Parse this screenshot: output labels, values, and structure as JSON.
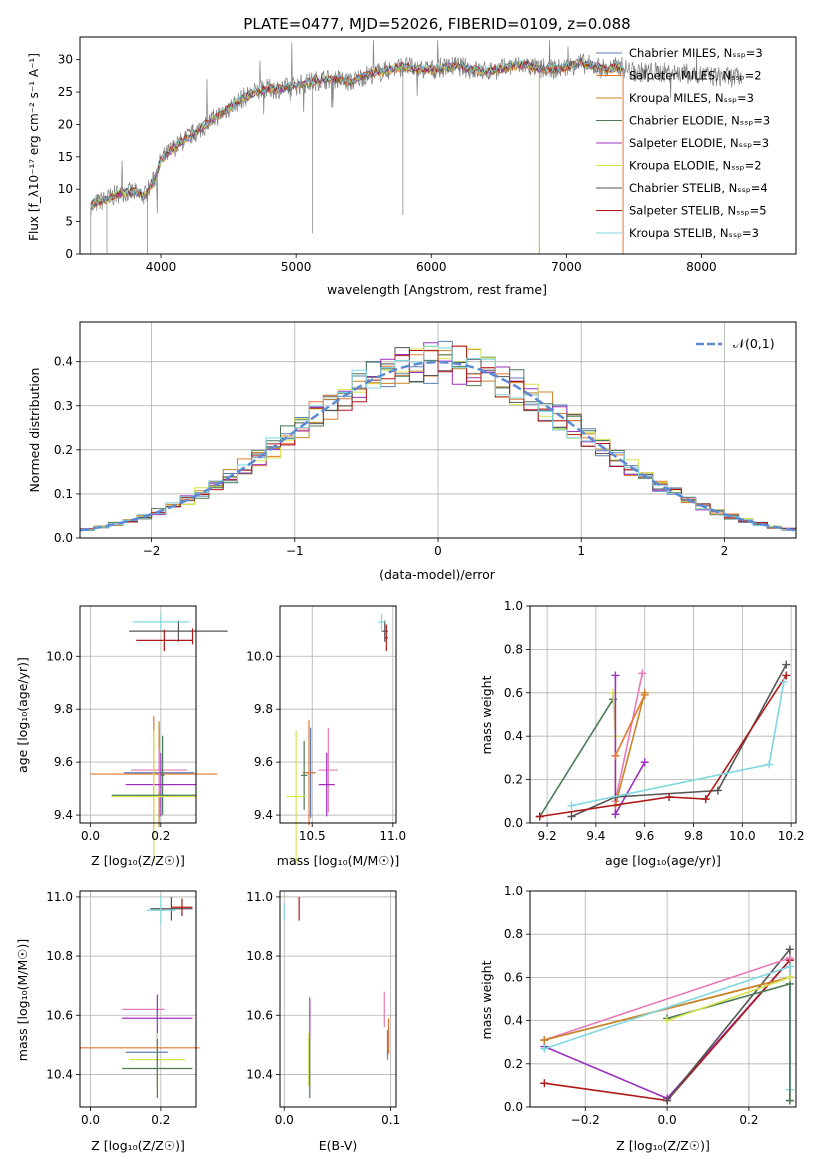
{
  "figure_title": "PLATE=0477, MJD=52026, FIBERID=0109, z=0.088",
  "colors": {
    "chabrier_miles": "#5b7fb0",
    "salpeter_miles": "#e8772e",
    "kroupa_miles": "#c8852a",
    "chabrier_elodie": "#4a7a56",
    "salpeter_elodie": "#9b30c0",
    "kroupa_elodie": "#d5e34e",
    "chabrier_stelib": "#555555",
    "salpeter_stelib": "#b01818",
    "kroupa_stelib": "#7ed6e0",
    "miles_pink": "#e77bb8",
    "model_curve": "#5b8bd6"
  },
  "chart_data": [
    {
      "id": "spectrum",
      "type": "line",
      "xlabel": "wavelength [Angstrom, rest frame]",
      "ylabel": "Flux [f_λ10⁻¹⁷ erg cm⁻² s⁻¹ A⁻¹]",
      "xlim": [
        3400,
        8700
      ],
      "ylim": [
        0,
        33.5
      ],
      "xticks": [
        4000,
        5000,
        6000,
        7000,
        8000
      ],
      "yticks": [
        0,
        5,
        10,
        15,
        20,
        25,
        30
      ],
      "grid": false,
      "legend": "right",
      "continuum": {
        "x": [
          3480,
          3600,
          3700,
          3800,
          3880,
          3950,
          4000,
          4100,
          4200,
          4300,
          4400,
          4500,
          4600,
          4700,
          4800,
          4900,
          5000,
          5100,
          5200,
          5300,
          5400,
          5500,
          5600,
          5700,
          5800,
          5900,
          6000,
          6100,
          6200,
          6300,
          6400,
          6500,
          6600,
          6700,
          6800,
          6900,
          7000,
          7100,
          7200,
          7300,
          7400,
          7500,
          7600,
          7700,
          7800,
          7900,
          8000,
          8100,
          8200,
          8300
        ],
        "y": [
          7.5,
          8.5,
          9.5,
          9.5,
          9.0,
          11.5,
          14.5,
          16.5,
          18.0,
          19.5,
          21.0,
          22.5,
          24.0,
          25.0,
          25.5,
          25.5,
          26.0,
          26.5,
          27.0,
          27.0,
          26.5,
          27.5,
          28.0,
          28.5,
          29.0,
          28.5,
          28.5,
          28.8,
          29.0,
          28.5,
          28.2,
          28.5,
          29.0,
          29.2,
          28.5,
          28.5,
          28.8,
          29.5,
          29.0,
          28.5,
          29.0,
          28.0,
          28.2,
          28.0,
          28.0,
          27.8,
          27.6,
          27.4,
          27.3,
          27.2
        ]
      },
      "series": [
        {
          "name": "Chabrier MILES, N_SSP=3",
          "color_key": "chabrier_miles"
        },
        {
          "name": "Salpeter MILES, N_SSP=2",
          "color_key": "salpeter_miles"
        },
        {
          "name": "Kroupa MILES, N_SSP=3",
          "color_key": "kroupa_miles"
        },
        {
          "name": "Chabrier ELODIE, N_SSP=3",
          "color_key": "chabrier_elodie"
        },
        {
          "name": "Salpeter ELODIE, N_SSP=3",
          "color_key": "salpeter_elodie"
        },
        {
          "name": "Kroupa ELODIE, N_SSP=2",
          "color_key": "kroupa_elodie"
        },
        {
          "name": "Chabrier STELIB, N_SSP=4",
          "color_key": "chabrier_stelib"
        },
        {
          "name": "Salpeter STELIB, N_SSP=5",
          "color_key": "salpeter_stelib"
        },
        {
          "name": "Kroupa STELIB, N_SSP=3",
          "color_key": "kroupa_stelib"
        }
      ]
    },
    {
      "id": "residuals",
      "type": "histogram",
      "xlabel": "(data-model)/error",
      "ylabel": "Normed distribution",
      "xlim": [
        -2.5,
        2.5
      ],
      "ylim": [
        0,
        0.49
      ],
      "xticks": [
        -2,
        -1,
        0,
        1,
        2
      ],
      "yticks": [
        0.0,
        0.1,
        0.2,
        0.3,
        0.4
      ],
      "grid": true,
      "legend": "top-right",
      "curve_label": "𝒩(0,1)",
      "bin_width": 0.1,
      "bin_start": -2.5,
      "bin_count": 50
    },
    {
      "id": "age_vs_Z",
      "type": "errorbar",
      "xlabel": "Z [log₁₀(Z/Z☉)]",
      "ylabel": "age  [log₁₀(age/yr)]",
      "xlim": [
        -0.03,
        0.3
      ],
      "ylim": [
        9.37,
        10.19
      ],
      "xticks": [
        0.0,
        0.2
      ],
      "yticks": [
        9.4,
        9.6,
        9.8,
        10.0
      ],
      "grid": true,
      "points": [
        {
          "key": "chabrier_miles",
          "x": 0.195,
          "xerr": 0.1,
          "y": 9.56,
          "yerr": 0.17
        },
        {
          "key": "salpeter_miles",
          "x": 0.18,
          "xerr": 0.18,
          "y": 9.555,
          "yerr": 0.22
        },
        {
          "key": "kroupa_miles",
          "x": 0.195,
          "xerr": 0.005,
          "y": 9.555,
          "yerr": 0.2
        },
        {
          "key": "miles_pink",
          "x": 0.195,
          "xerr": 0.08,
          "y": 9.57,
          "yerr": 0.08
        },
        {
          "key": "chabrier_elodie",
          "x": 0.205,
          "xerr": 0.005,
          "y": 9.55,
          "yerr": 0.15
        },
        {
          "key": "salpeter_elodie",
          "x": 0.2,
          "xerr": 0.1,
          "y": 9.515,
          "yerr": 0.12
        },
        {
          "key": "kroupa_elodie",
          "x": 0.18,
          "xerr": 0.12,
          "y": 9.47,
          "yerr": 0.25
        },
        {
          "key": "chabrier_elodie",
          "x": 0.18,
          "xerr": 0.12,
          "y": 9.475,
          "yerr": 0.0
        },
        {
          "key": "chabrier_stelib",
          "x": 0.25,
          "xerr": 0.14,
          "y": 10.095,
          "yerr": 0.04
        },
        {
          "key": "salpeter_stelib",
          "x": 0.29,
          "xerr": 0.0,
          "y": 10.075,
          "yerr": 0.03
        },
        {
          "key": "salpeter_stelib",
          "x": 0.21,
          "xerr": 0.08,
          "y": 10.06,
          "yerr": 0.04
        },
        {
          "key": "kroupa_stelib",
          "x": 0.2,
          "xerr": 0.08,
          "y": 10.13,
          "yerr": 0.03
        }
      ]
    },
    {
      "id": "age_vs_mass",
      "type": "errorbar",
      "xlabel": "mass [log₁₀(M/M☉)]",
      "ylabel": "",
      "xlim": [
        10.3,
        11.02
      ],
      "ylim": [
        9.37,
        10.19
      ],
      "xticks": [
        10.5,
        11.0
      ],
      "yticks": [
        9.4,
        9.6,
        9.8,
        10.0
      ],
      "grid": true,
      "points": [
        {
          "key": "chabrier_miles",
          "x": 10.49,
          "xerr": 0.03,
          "y": 9.56,
          "yerr": 0.17
        },
        {
          "key": "salpeter_miles",
          "x": 10.48,
          "xerr": 0.04,
          "y": 9.56,
          "yerr": 0.2
        },
        {
          "key": "miles_pink",
          "x": 10.6,
          "xerr": 0.06,
          "y": 9.57,
          "yerr": 0.16
        },
        {
          "key": "chabrier_elodie",
          "x": 10.45,
          "xerr": 0.02,
          "y": 9.55,
          "yerr": 0.13
        },
        {
          "key": "salpeter_elodie",
          "x": 10.59,
          "xerr": 0.05,
          "y": 9.515,
          "yerr": 0.12
        },
        {
          "key": "kroupa_elodie",
          "x": 10.4,
          "xerr": 0.06,
          "y": 9.47,
          "yerr": 0.25
        },
        {
          "key": "chabrier_stelib",
          "x": 10.95,
          "xerr": 0.02,
          "y": 10.095,
          "yerr": 0.04
        },
        {
          "key": "salpeter_stelib",
          "x": 10.96,
          "xerr": 0.01,
          "y": 10.07,
          "yerr": 0.05
        },
        {
          "key": "kroupa_stelib",
          "x": 10.93,
          "xerr": 0.02,
          "y": 10.13,
          "yerr": 0.03
        }
      ]
    },
    {
      "id": "weight_vs_age",
      "type": "line",
      "xlabel": "age  [log₁₀(age/yr)]",
      "ylabel": "mass weight",
      "xlim": [
        9.13,
        10.22
      ],
      "ylim": [
        0,
        1
      ],
      "xticks": [
        9.2,
        9.4,
        9.6,
        9.8,
        10.0,
        10.2
      ],
      "yticks": [
        0.0,
        0.2,
        0.4,
        0.6,
        0.8,
        1.0
      ],
      "grid": true,
      "series": [
        {
          "key": "chabrier_elodie",
          "x": [
            9.17,
            9.47
          ],
          "y": [
            0.03,
            0.57
          ]
        },
        {
          "key": "kroupa_elodie",
          "x": [
            9.47,
            9.48,
            9.48
          ],
          "y": [
            0.6,
            0.4,
            0.1
          ]
        },
        {
          "key": "salpeter_elodie",
          "x": [
            9.48,
            9.48,
            9.48,
            9.6
          ],
          "y": [
            0.68,
            0.31,
            0.04,
            0.28
          ]
        },
        {
          "key": "miles_pink",
          "x": [
            9.48,
            9.59
          ],
          "y": [
            0.1,
            0.69
          ]
        },
        {
          "key": "salpeter_miles",
          "x": [
            9.48,
            9.6
          ],
          "y": [
            0.31,
            0.59
          ]
        },
        {
          "key": "kroupa_miles",
          "x": [
            9.48,
            9.6
          ],
          "y": [
            0.08,
            0.6
          ]
        },
        {
          "key": "chabrier_stelib",
          "x": [
            9.3,
            9.48,
            9.9,
            10.18
          ],
          "y": [
            0.03,
            0.12,
            0.15,
            0.73
          ]
        },
        {
          "key": "salpeter_stelib",
          "x": [
            9.17,
            9.7,
            9.85,
            10.18
          ],
          "y": [
            0.03,
            0.12,
            0.11,
            0.68
          ]
        },
        {
          "key": "kroupa_stelib",
          "x": [
            9.3,
            10.11,
            10.17
          ],
          "y": [
            0.08,
            0.27,
            0.65
          ]
        }
      ]
    },
    {
      "id": "mass_vs_Z",
      "type": "errorbar",
      "xlabel": "Z [log₁₀(Z/Z☉)]",
      "ylabel": "mass [log₁₀(M/M☉)]",
      "xlim": [
        -0.03,
        0.3
      ],
      "ylim": [
        10.29,
        11.02
      ],
      "xticks": [
        0.0,
        0.2
      ],
      "yticks": [
        10.4,
        10.6,
        10.8,
        11.0
      ],
      "grid": true,
      "points": [
        {
          "key": "salpeter_miles",
          "x": 0.14,
          "xerr": 0.17,
          "y": 10.49,
          "yerr": 0.0
        },
        {
          "key": "chabrier_miles",
          "x": 0.16,
          "xerr": 0.06,
          "y": 10.475,
          "yerr": 0.0
        },
        {
          "key": "miles_pink",
          "x": 0.15,
          "xerr": 0.06,
          "y": 10.62,
          "yerr": 0.0
        },
        {
          "key": "salpeter_elodie",
          "x": 0.19,
          "xerr": 0.1,
          "y": 10.59,
          "yerr": 0.08
        },
        {
          "key": "kroupa_elodie",
          "x": 0.19,
          "xerr": 0.08,
          "y": 10.45,
          "yerr": 0.09
        },
        {
          "key": "chabrier_elodie",
          "x": 0.19,
          "xerr": 0.1,
          "y": 10.42,
          "yerr": 0.1
        },
        {
          "key": "chabrier_stelib",
          "x": 0.23,
          "xerr": 0.06,
          "y": 10.96,
          "yerr": 0.04
        },
        {
          "key": "salpeter_stelib",
          "x": 0.26,
          "xerr": 0.03,
          "y": 10.965,
          "yerr": 0.03
        },
        {
          "key": "kroupa_stelib",
          "x": 0.2,
          "xerr": 0.04,
          "y": 10.955,
          "yerr": 0.05
        }
      ]
    },
    {
      "id": "mass_vs_ebv",
      "type": "errorbar",
      "xlabel": "E(B-V)",
      "ylabel": "",
      "xlim": [
        -0.004,
        0.105
      ],
      "ylim": [
        10.29,
        11.02
      ],
      "xticks": [
        0.0,
        0.1
      ],
      "yticks": [
        10.4,
        10.6,
        10.8,
        11.0
      ],
      "grid": true,
      "points": [
        {
          "key": "kroupa_stelib",
          "x": 0.0,
          "xerr": 0.0,
          "y": 10.95,
          "yerr": 0.03
        },
        {
          "key": "salpeter_stelib",
          "x": 0.014,
          "xerr": 0.0,
          "y": 10.96,
          "yerr": 0.04
        },
        {
          "key": "salpeter_elodie",
          "x": 0.024,
          "xerr": 0.0,
          "y": 10.59,
          "yerr": 0.07
        },
        {
          "key": "kroupa_elodie",
          "x": 0.023,
          "xerr": 0.0,
          "y": 10.45,
          "yerr": 0.09
        },
        {
          "key": "chabrier_elodie",
          "x": 0.024,
          "xerr": 0.0,
          "y": 10.42,
          "yerr": 0.1
        },
        {
          "key": "miles_pink",
          "x": 0.094,
          "xerr": 0.0,
          "y": 10.62,
          "yerr": 0.06
        },
        {
          "key": "salpeter_miles",
          "x": 0.098,
          "xerr": 0.0,
          "y": 10.53,
          "yerr": 0.06
        },
        {
          "key": "chabrier_miles",
          "x": 0.097,
          "xerr": 0.0,
          "y": 10.5,
          "yerr": 0.05
        }
      ]
    },
    {
      "id": "weight_vs_Z",
      "type": "line",
      "xlabel": "Z [log₁₀(Z/Z☉)]",
      "ylabel": "mass weight",
      "xlim": [
        -0.335,
        0.315
      ],
      "ylim": [
        0,
        1
      ],
      "xticks": [
        -0.2,
        0.0,
        0.2
      ],
      "yticks": [
        0.0,
        0.2,
        0.4,
        0.6,
        0.8,
        1.0
      ],
      "grid": true,
      "series": [
        {
          "key": "salpeter_elodie",
          "x": [
            -0.3,
            0.0,
            0.3
          ],
          "y": [
            0.28,
            0.04,
            0.68
          ]
        },
        {
          "key": "salpeter_stelib",
          "x": [
            -0.3,
            0.0,
            0.3
          ],
          "y": [
            0.11,
            0.03,
            0.68
          ]
        },
        {
          "key": "chabrier_stelib",
          "x": [
            0.0,
            0.3,
            0.3
          ],
          "y": [
            0.03,
            0.73,
            0.03
          ]
        },
        {
          "key": "miles_pink",
          "x": [
            -0.3,
            0.3
          ],
          "y": [
            0.31,
            0.69
          ]
        },
        {
          "key": "salpeter_miles",
          "x": [
            -0.3,
            0.3
          ],
          "y": [
            0.31,
            0.6
          ]
        },
        {
          "key": "kroupa_miles",
          "x": [
            -0.3,
            0.3
          ],
          "y": [
            0.31,
            0.6
          ]
        },
        {
          "key": "kroupa_stelib",
          "x": [
            -0.3,
            0.3,
            0.3
          ],
          "y": [
            0.27,
            0.65,
            0.08
          ]
        },
        {
          "key": "chabrier_elodie",
          "x": [
            0.0,
            0.3,
            0.3
          ],
          "y": [
            0.41,
            0.57,
            0.03
          ]
        },
        {
          "key": "kroupa_elodie",
          "x": [
            0.0,
            0.3
          ],
          "y": [
            0.4,
            0.6
          ]
        }
      ]
    }
  ]
}
